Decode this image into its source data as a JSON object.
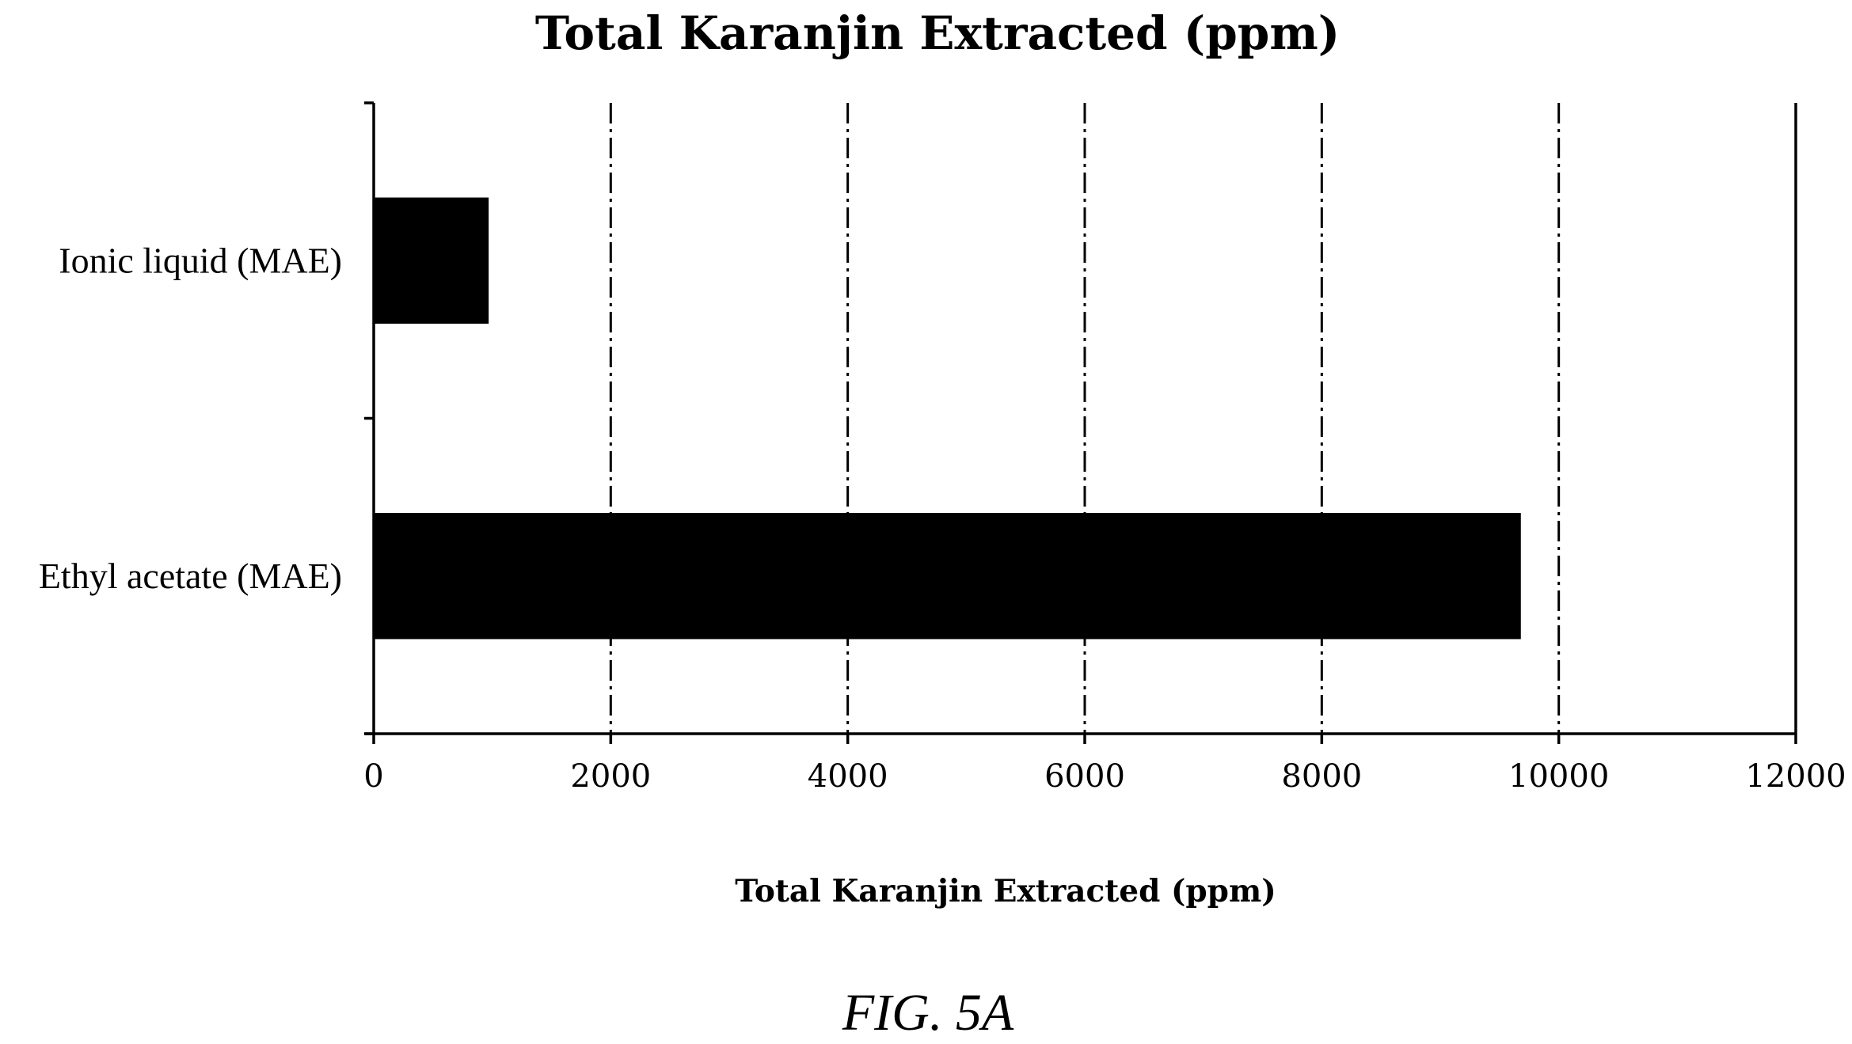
{
  "chart_data": {
    "type": "bar",
    "orientation": "horizontal",
    "title": "Total Karanjin Extracted (ppm)",
    "xlabel": "Total Karanjin Extracted (ppm)",
    "ylabel": "",
    "categories": [
      "Ionic liquid (MAE)",
      "Ethyl acetate (MAE)"
    ],
    "values": [
      970,
      9680
    ],
    "xlim": [
      0,
      12000
    ],
    "xticks": [
      0,
      2000,
      4000,
      6000,
      8000,
      10000,
      12000
    ],
    "xtick_labels": [
      "0",
      "2000",
      "4000",
      "6000",
      "8000",
      "10000",
      "12000"
    ],
    "grid": "vertical dash-dot",
    "legend": "none",
    "bar_color": "#000000"
  },
  "caption": "FIG. 5A"
}
